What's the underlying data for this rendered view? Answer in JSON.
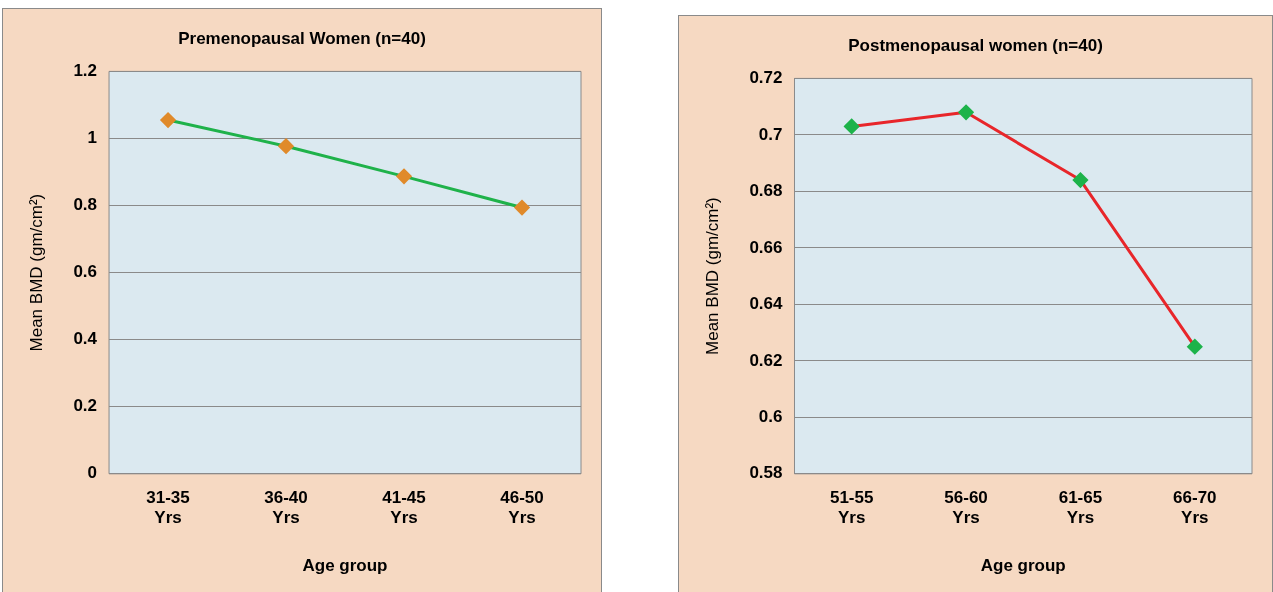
{
  "chart_data": [
    {
      "type": "line",
      "title": "Premenopausal Women (n=40)",
      "xlabel": "Age group",
      "ylabel": "Mean BMD (gm/cm²)",
      "categories": [
        "31-35 Yrs",
        "36-40 Yrs",
        "41-45 Yrs",
        "46-50 Yrs"
      ],
      "series": [
        {
          "color": "#1fb24a",
          "colors": [
            "#e08a2a",
            "#e08a2a",
            "#e08a2a",
            "#e08a2a"
          ],
          "values": [
            1.055,
            0.977,
            0.887,
            0.794
          ]
        }
      ],
      "ylim": [
        0,
        1.2
      ],
      "yticks": [
        0,
        0.2,
        0.4,
        0.6,
        0.8,
        1,
        1.2
      ],
      "grid": "y",
      "legend": false,
      "marker": "diamond",
      "line_style": "solid"
    },
    {
      "type": "line",
      "title": "Postmenopausal women (n=40)",
      "xlabel": "Age group",
      "ylabel": "Mean BMD (gm/cm²)",
      "categories": [
        "51-55 Yrs",
        "56-60 Yrs",
        "61-65 Yrs",
        "66-70 Yrs"
      ],
      "series": [
        {
          "color": "#e8262a",
          "colors": [
            "#1db34a",
            "#1db34a",
            "#1db34a",
            "#1db34a"
          ],
          "values": [
            0.703,
            0.708,
            0.684,
            0.625
          ]
        }
      ],
      "ylim": [
        0.58,
        0.72
      ],
      "yticks": [
        0.58,
        0.6,
        0.62,
        0.64,
        0.66,
        0.68,
        0.7,
        0.72
      ],
      "grid": "y",
      "legend": false,
      "marker": "diamond",
      "line_style": "solid"
    }
  ]
}
